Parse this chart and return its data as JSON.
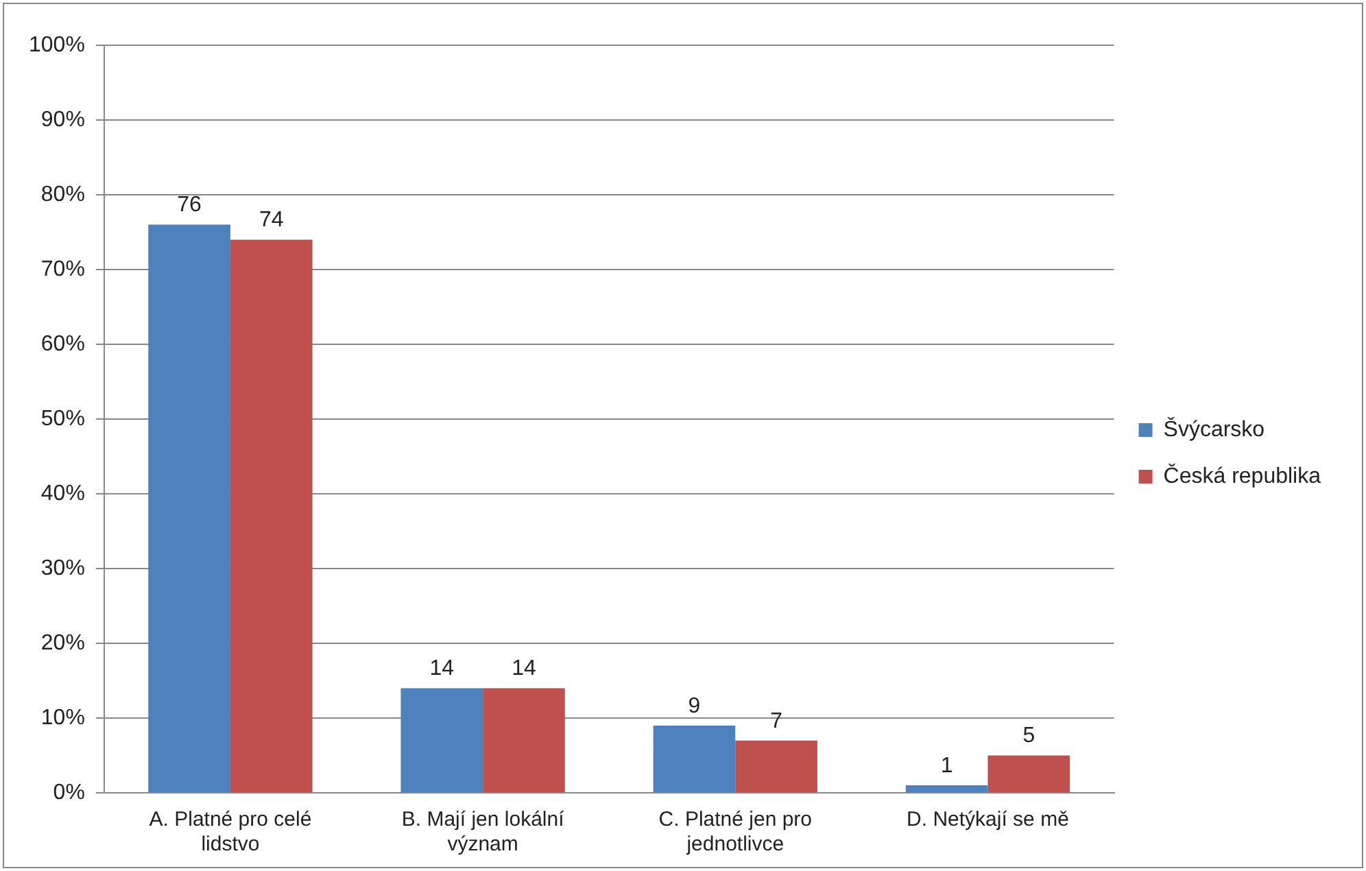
{
  "chart_data": {
    "type": "bar",
    "categories": [
      "A. Platné pro celé lidstvo",
      "B. Mají jen lokální význam",
      "C. Platné jen pro jednotlivce",
      "D. Netýkají se mě"
    ],
    "series": [
      {
        "name": "Švýcarsko",
        "color": "#4f81bd",
        "values": [
          76,
          14,
          9,
          1
        ]
      },
      {
        "name": "Česká republika",
        "color": "#c0504d",
        "values": [
          74,
          14,
          7,
          5
        ]
      }
    ],
    "ylim": [
      0,
      100
    ],
    "yticks": [
      {
        "value": 0,
        "label": "0%"
      },
      {
        "value": 10,
        "label": "10%"
      },
      {
        "value": 20,
        "label": "20%"
      },
      {
        "value": 30,
        "label": "30%"
      },
      {
        "value": 40,
        "label": "40%"
      },
      {
        "value": 50,
        "label": "50%"
      },
      {
        "value": 60,
        "label": "60%"
      },
      {
        "value": 70,
        "label": "70%"
      },
      {
        "value": 80,
        "label": "80%"
      },
      {
        "value": 90,
        "label": "90%"
      },
      {
        "value": 100,
        "label": "100%"
      }
    ],
    "grid": "y",
    "legend": "right",
    "data_labels": true
  }
}
